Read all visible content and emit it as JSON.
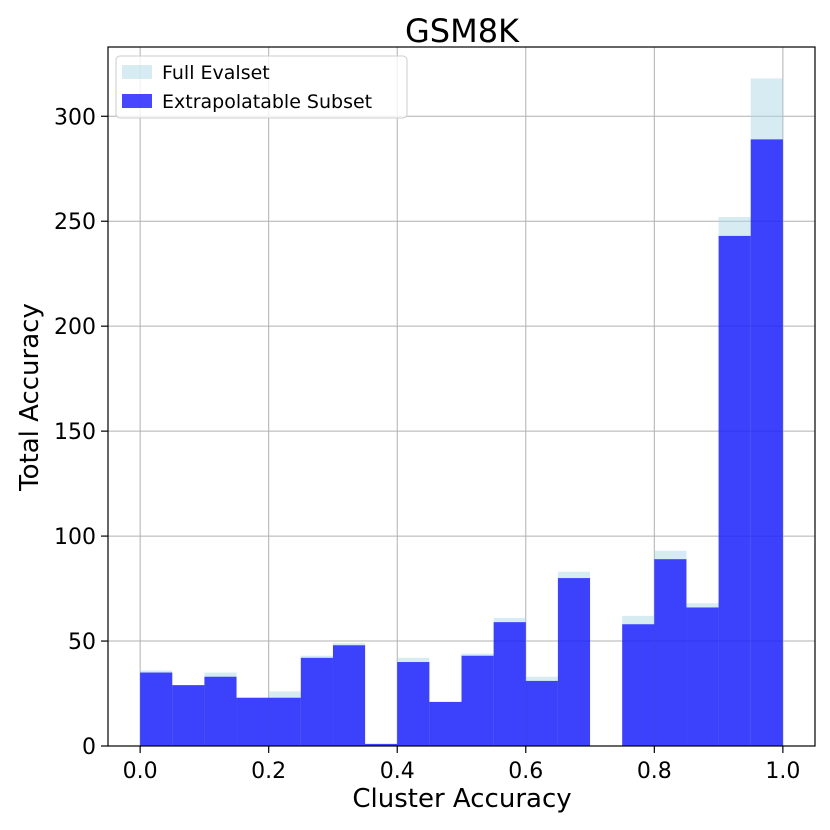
{
  "chart_data": {
    "type": "bar",
    "title": "GSM8K",
    "xlabel": "Cluster Accuracy",
    "ylabel": "Total Accuracy",
    "xlim": [
      -0.05,
      1.05
    ],
    "ylim": [
      0,
      333
    ],
    "bin_width": 0.05,
    "bin_starts": [
      0.0,
      0.05,
      0.1,
      0.15,
      0.2,
      0.25,
      0.3,
      0.35,
      0.4,
      0.45,
      0.5,
      0.55,
      0.6,
      0.65,
      0.7,
      0.75,
      0.8,
      0.85,
      0.9,
      0.95
    ],
    "x_ticks": [
      "0.0",
      "0.2",
      "0.4",
      "0.6",
      "0.8",
      "1.0"
    ],
    "y_ticks": [
      "0",
      "50",
      "100",
      "150",
      "200",
      "250",
      "300"
    ],
    "grid": true,
    "legend_position": "top-left",
    "series": [
      {
        "name": "Full Evalset",
        "color": "#add8e6",
        "values": [
          36,
          29,
          35,
          23,
          26,
          43,
          49,
          1,
          42,
          21,
          44,
          61,
          33,
          83,
          0,
          62,
          93,
          68,
          252,
          318
        ]
      },
      {
        "name": "Extrapolatable Subset",
        "color": "#0000ff",
        "values": [
          35,
          29,
          33,
          23,
          23,
          42,
          48,
          1,
          40,
          21,
          43,
          59,
          31,
          80,
          0,
          58,
          89,
          66,
          243,
          289
        ]
      }
    ]
  }
}
